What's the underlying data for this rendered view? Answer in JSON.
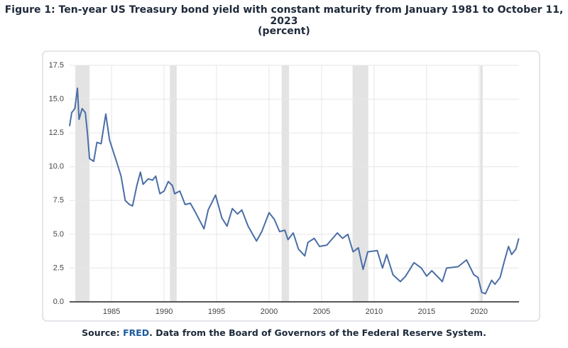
{
  "chart_data": {
    "type": "line",
    "title": "Figure 1: Ten-year US Treasury bond yield with constant maturity from January 1981 to October 11, 2023",
    "subtitle": "(percent)",
    "source_prefix": "Source: ",
    "source_link": "FRED",
    "source_suffix": ". Data from the Board of Governors of the Federal Reserve System.",
    "x": [
      1981.0,
      1981.2,
      1981.5,
      1981.75,
      1981.9,
      1982.2,
      1982.5,
      1982.7,
      1982.9,
      1983.3,
      1983.6,
      1984.0,
      1984.45,
      1984.8,
      1985.0,
      1985.5,
      1985.9,
      1986.3,
      1986.7,
      1987.0,
      1987.4,
      1987.75,
      1988.0,
      1988.5,
      1988.9,
      1989.2,
      1989.6,
      1990.0,
      1990.4,
      1990.8,
      1991.0,
      1991.5,
      1992.0,
      1992.5,
      1993.0,
      1993.8,
      1994.2,
      1994.9,
      1995.5,
      1996.0,
      1996.5,
      1997.0,
      1997.4,
      1998.0,
      1998.8,
      1999.3,
      2000.0,
      2000.5,
      2001.0,
      2001.5,
      2001.8,
      2002.3,
      2002.8,
      2003.4,
      2003.7,
      2004.3,
      2004.8,
      2005.5,
      2006.5,
      2007.0,
      2007.5,
      2008.0,
      2008.5,
      2008.95,
      2009.4,
      2010.3,
      2010.8,
      2011.2,
      2011.8,
      2012.5,
      2013.0,
      2013.8,
      2014.5,
      2015.0,
      2015.5,
      2016.5,
      2016.9,
      2018.0,
      2018.8,
      2019.5,
      2019.9,
      2020.25,
      2020.6,
      2021.2,
      2021.5,
      2022.0,
      2022.4,
      2022.8,
      2023.1,
      2023.5,
      2023.78
    ],
    "series": [
      {
        "color": "#4a6ea6",
        "values": [
          13.0,
          14.0,
          14.3,
          15.8,
          13.5,
          14.3,
          14.0,
          12.5,
          10.6,
          10.4,
          11.8,
          11.7,
          13.9,
          12.0,
          11.5,
          10.3,
          9.3,
          7.5,
          7.2,
          7.1,
          8.6,
          9.6,
          8.7,
          9.1,
          9.0,
          9.3,
          8.0,
          8.2,
          8.9,
          8.6,
          8.0,
          8.2,
          7.2,
          7.3,
          6.6,
          5.4,
          6.8,
          7.9,
          6.2,
          5.6,
          6.9,
          6.5,
          6.8,
          5.6,
          4.5,
          5.2,
          6.6,
          6.1,
          5.2,
          5.3,
          4.6,
          5.1,
          3.9,
          3.4,
          4.4,
          4.7,
          4.1,
          4.2,
          5.1,
          4.7,
          5.0,
          3.7,
          4.0,
          2.4,
          3.7,
          3.8,
          2.5,
          3.5,
          2.0,
          1.5,
          1.9,
          2.9,
          2.5,
          1.9,
          2.3,
          1.5,
          2.5,
          2.6,
          3.1,
          2.0,
          1.8,
          0.7,
          0.6,
          1.6,
          1.3,
          1.8,
          3.0,
          4.1,
          3.5,
          3.9,
          4.7
        ]
      }
    ],
    "shaded_periods": [
      [
        1981.55,
        1982.9
      ],
      [
        1990.55,
        1991.2
      ],
      [
        2001.2,
        2001.9
      ],
      [
        2007.95,
        2009.45
      ],
      [
        2020.1,
        2020.35
      ]
    ],
    "shade_color": "#e3e3e3",
    "xlim": [
      1981.0,
      2023.8
    ],
    "xticks": [
      1985,
      1990,
      1995,
      2000,
      2005,
      2010,
      2015,
      2020
    ],
    "ylim": [
      0,
      17.5
    ],
    "yticks": [
      {
        "value": 0,
        "label": "0.0"
      },
      2.5,
      {
        "value": 5,
        "label": "5.0"
      },
      7.5,
      {
        "value": 10,
        "label": "10.0"
      },
      12.5,
      {
        "value": 15,
        "label": "15.0"
      },
      17.5
    ],
    "grid": true
  }
}
